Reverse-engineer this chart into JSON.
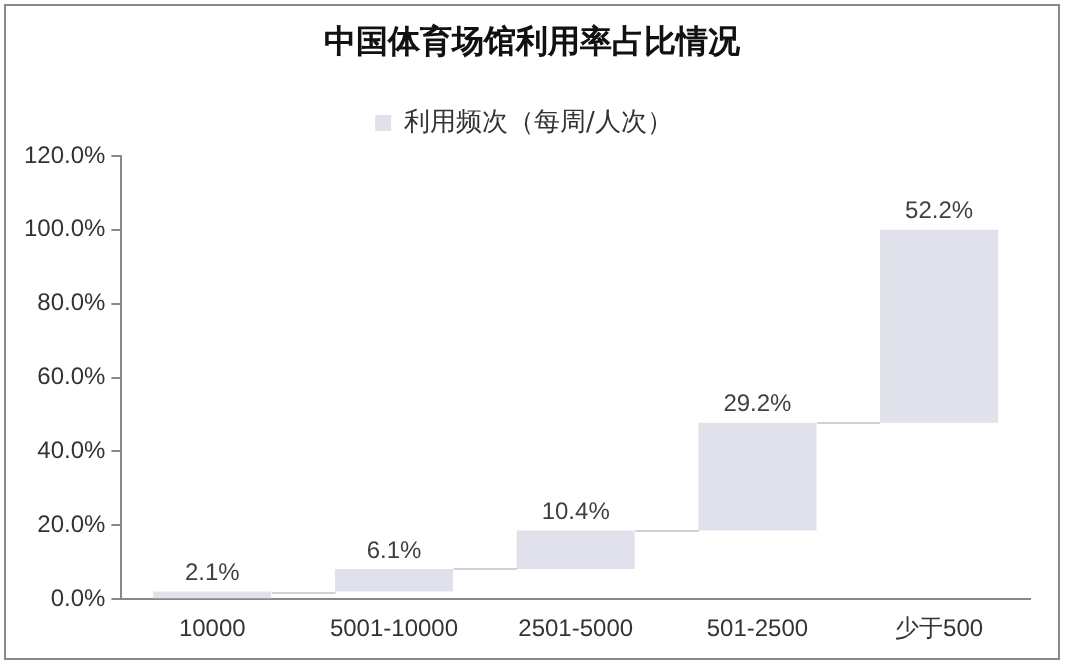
{
  "chart_data": {
    "type": "bar",
    "title": "中国体育场馆利用率占比情况",
    "categories": [
      "10000",
      "5001-10000",
      "2501-5000",
      "501-2500",
      "少于500"
    ],
    "series": [
      {
        "name": "利用频次（每周/人次）",
        "color": "#e1e1eb",
        "values": [
          2.1,
          6.1,
          10.4,
          29.2,
          52.2
        ],
        "base": [
          0,
          2.1,
          8.2,
          18.6,
          47.8
        ]
      }
    ],
    "value_labels": [
      "2.1%",
      "6.1%",
      "10.4%",
      "29.2%",
      "52.2%"
    ],
    "ylim": [
      0,
      120
    ],
    "yticks": [
      {
        "value": 0,
        "label": "0.0%"
      },
      {
        "value": 20,
        "label": "20.0%"
      },
      {
        "value": 40,
        "label": "40.0%"
      },
      {
        "value": 60,
        "label": "60.0%"
      },
      {
        "value": 80,
        "label": "80.0%"
      },
      {
        "value": 100,
        "label": "100.0%"
      },
      {
        "value": 120,
        "label": "120.0%"
      }
    ],
    "grid": false,
    "legend": "top"
  }
}
